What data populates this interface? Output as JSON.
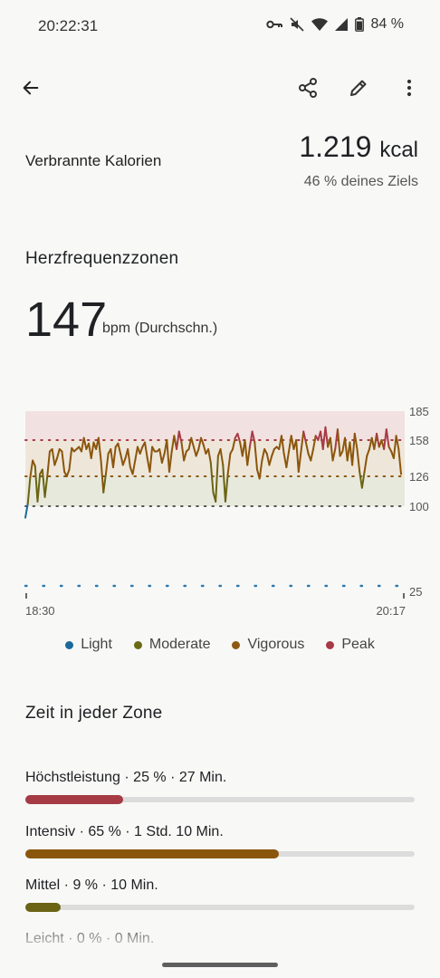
{
  "status": {
    "time": "20:22:31",
    "battery": "84 %"
  },
  "calories": {
    "label": "Verbrannte Kalorien",
    "value": "1.219",
    "unit": "kcal",
    "goal": "46 % deines Ziels"
  },
  "hr": {
    "title": "Herzfrequenzzonen",
    "avg": "147",
    "avg_unit": "bpm (Durchschn.)"
  },
  "chart_data": {
    "type": "line",
    "x_start_label": "18:30",
    "x_end_label": "20:17",
    "y_tick_labels": [
      "185",
      "158",
      "126",
      "100",
      "25"
    ],
    "zone_thresholds": [
      100,
      126,
      158,
      185
    ],
    "y_range": [
      25,
      185
    ],
    "series": [
      {
        "name": "Heart rate",
        "values": [
          90,
          102,
          125,
          140,
          135,
          104,
          128,
          132,
          108,
          126,
          148,
          150,
          136,
          142,
          150,
          148,
          130,
          126,
          132,
          151,
          148,
          150,
          152,
          148,
          160,
          150,
          155,
          142,
          156,
          150,
          160,
          140,
          112,
          128,
          146,
          150,
          134,
          152,
          155,
          146,
          136,
          142,
          150,
          134,
          128,
          140,
          152,
          146,
          152,
          156,
          142,
          130,
          152,
          148,
          148,
          150,
          138,
          146,
          158,
          130,
          148,
          162,
          150,
          166,
          156,
          140,
          148,
          150,
          160,
          152,
          144,
          150,
          160,
          154,
          146,
          150,
          138,
          112,
          104,
          144,
          150,
          136,
          104,
          128,
          146,
          150,
          160,
          164,
          156,
          144,
          158,
          136,
          152,
          166,
          156,
          132,
          124,
          140,
          150,
          146,
          136,
          144,
          150,
          152,
          150,
          162,
          146,
          134,
          148,
          162,
          150,
          158,
          130,
          148,
          166,
          156,
          146,
          140,
          150,
          162,
          158,
          166,
          150,
          170,
          152,
          160,
          140,
          150,
          168,
          144,
          148,
          160,
          140,
          156,
          136,
          164,
          150,
          130,
          116,
          130,
          144,
          150,
          160,
          150,
          164,
          152,
          158,
          150,
          168,
          152,
          148,
          142,
          162,
          150,
          128
        ]
      }
    ],
    "legend": [
      {
        "name": "Light",
        "color": "#1a6a9a"
      },
      {
        "name": "Moderate",
        "color": "#6b6a14"
      },
      {
        "name": "Vigorous",
        "color": "#8c5a12"
      },
      {
        "name": "Peak",
        "color": "#a83a46"
      }
    ]
  },
  "zones": {
    "title": "Zeit in jeder Zone",
    "items": [
      {
        "label": "Höchstleistung · 25 % · 27 Min.",
        "percent": 25,
        "color": "#a63b45"
      },
      {
        "label": "Intensiv · 65 % · 1 Std. 10 Min.",
        "percent": 65,
        "color": "#8a560c"
      },
      {
        "label": "Mittel · 9 % · 10 Min.",
        "percent": 9,
        "color": "#6b6414"
      },
      {
        "label": "Leicht · 0 % · 0 Min.",
        "percent": 0,
        "color": "#1a6a9a"
      }
    ]
  }
}
